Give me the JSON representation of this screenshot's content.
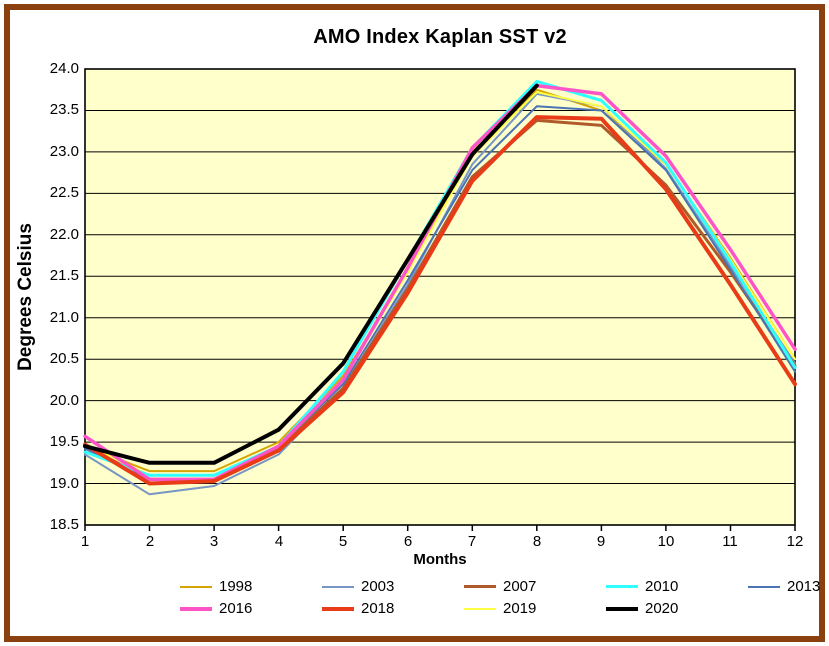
{
  "page": {
    "background": "#FFFFFF",
    "frame_border_color": "#8B4010"
  },
  "chart_data": {
    "type": "line",
    "title": "AMO Index Kaplan SST v2",
    "xlabel": "Months",
    "ylabel": "Degrees Celsius",
    "x": [
      1,
      2,
      3,
      4,
      5,
      6,
      7,
      8,
      9,
      10,
      11,
      12
    ],
    "x_tick_labels": [
      "1",
      "2",
      "3",
      "4",
      "5",
      "6",
      "7",
      "8",
      "9",
      "10",
      "11",
      "12"
    ],
    "y_tick_labels": [
      "24.0",
      "23.5",
      "23.0",
      "22.5",
      "22.0",
      "21.5",
      "21.0",
      "20.5",
      "20.0",
      "19.5",
      "19.0",
      "18.5"
    ],
    "ylim": [
      18.5,
      24.0
    ],
    "y_step": 0.5,
    "grid": "horizontal-only",
    "plot_background": "#FFFFCC",
    "axis_color": "#000000",
    "legend_position": "bottom",
    "legend_rows": [
      [
        "1998",
        "2003",
        "2007",
        "2010",
        "2013"
      ],
      [
        "2016",
        "2018",
        "2019",
        "2020"
      ]
    ],
    "series": [
      {
        "name": "1998",
        "color": "#D6A400",
        "width": 2,
        "values": [
          19.45,
          19.15,
          19.15,
          19.5,
          20.3,
          21.55,
          23.0,
          23.75,
          23.5,
          22.85,
          21.72,
          20.5
        ]
      },
      {
        "name": "2003",
        "color": "#7896C5",
        "width": 2,
        "values": [
          19.35,
          18.87,
          18.97,
          19.35,
          20.15,
          21.4,
          22.85,
          23.7,
          23.55,
          22.8,
          21.62,
          20.45
        ]
      },
      {
        "name": "2007",
        "color": "#B05A2C",
        "width": 3,
        "values": [
          19.45,
          19.05,
          19.05,
          19.42,
          20.15,
          21.35,
          22.7,
          23.38,
          23.32,
          22.6,
          21.55,
          20.42
        ]
      },
      {
        "name": "2010",
        "color": "#2FFFFF",
        "width": 3,
        "values": [
          19.38,
          19.1,
          19.1,
          19.45,
          20.35,
          21.7,
          23.05,
          23.85,
          23.62,
          22.87,
          21.67,
          20.4
        ]
      },
      {
        "name": "2013",
        "color": "#4A74B4",
        "width": 2,
        "values": [
          19.42,
          19.05,
          19.05,
          19.45,
          20.2,
          21.45,
          22.78,
          23.55,
          23.5,
          22.78,
          21.58,
          20.35
        ]
      },
      {
        "name": "2016",
        "color": "#FF54C8",
        "width": 3.5,
        "values": [
          19.57,
          19.05,
          19.05,
          19.45,
          20.25,
          21.6,
          23.05,
          23.8,
          23.7,
          22.95,
          21.82,
          20.62
        ]
      },
      {
        "name": "2018",
        "color": "#E83C18",
        "width": 4,
        "values": [
          19.47,
          19.0,
          19.03,
          19.4,
          20.1,
          21.3,
          22.65,
          23.42,
          23.4,
          22.55,
          21.4,
          20.2
        ]
      },
      {
        "name": "2019",
        "color": "#FFFF45",
        "width": 2,
        "values": [
          19.48,
          19.1,
          19.1,
          19.45,
          20.25,
          21.55,
          22.95,
          23.72,
          23.55,
          22.85,
          21.7,
          20.5
        ]
      },
      {
        "name": "2020",
        "color": "#000000",
        "width": 4,
        "values": [
          19.45,
          19.25,
          19.25,
          19.65,
          20.45,
          21.7,
          22.97,
          23.8,
          null,
          null,
          null,
          null
        ]
      }
    ]
  }
}
